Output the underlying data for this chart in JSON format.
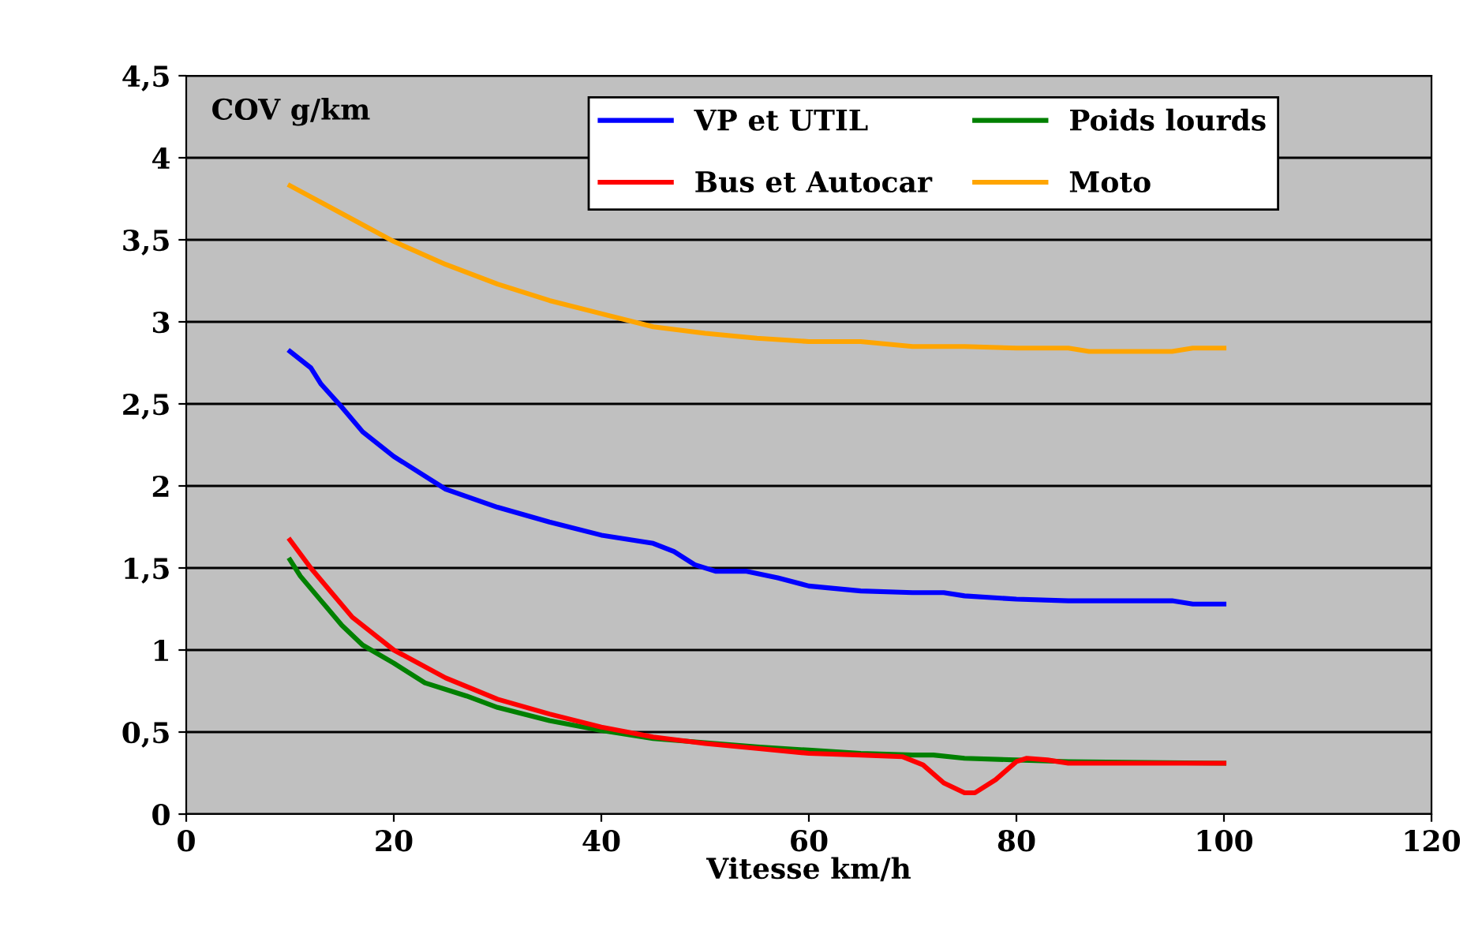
{
  "chart_data": {
    "type": "line",
    "ylabel": "COV g/km",
    "xlabel": "Vitesse km/h",
    "xlim": [
      0,
      120
    ],
    "xticks": [
      0,
      20,
      40,
      60,
      80,
      100,
      120
    ],
    "ylim": [
      0,
      4.5
    ],
    "yticks": [
      0,
      {
        "value": 0.5,
        "label": "0,5"
      },
      1,
      {
        "value": 1.5,
        "label": "1,5"
      },
      2,
      {
        "value": 2.5,
        "label": "2,5"
      },
      3,
      {
        "value": 3.5,
        "label": "3,5"
      },
      4,
      {
        "value": 4.5,
        "label": "4,5"
      }
    ],
    "grid": "y",
    "legend": "top",
    "marker": "none",
    "line_style": "solid",
    "series": [
      {
        "name": "VP et UTIL",
        "color": "#0000ff",
        "x": [
          10,
          12,
          13,
          15,
          17,
          20,
          25,
          30,
          35,
          40,
          45,
          47,
          49,
          51,
          54,
          57,
          60,
          65,
          70,
          73,
          75,
          80,
          85,
          90,
          95,
          97,
          100
        ],
        "values": [
          2.82,
          2.72,
          2.62,
          2.48,
          2.33,
          2.18,
          1.98,
          1.87,
          1.78,
          1.7,
          1.65,
          1.6,
          1.52,
          1.48,
          1.48,
          1.44,
          1.39,
          1.36,
          1.35,
          1.35,
          1.33,
          1.31,
          1.3,
          1.3,
          1.3,
          1.28,
          1.28
        ]
      },
      {
        "name": "Poids lourds",
        "color": "#008000",
        "x": [
          10,
          11,
          13,
          15,
          17,
          20,
          23,
          27,
          30,
          35,
          40,
          45,
          55,
          60,
          65,
          70,
          72,
          75,
          80,
          85,
          100
        ],
        "values": [
          1.55,
          1.45,
          1.3,
          1.15,
          1.03,
          0.92,
          0.8,
          0.72,
          0.65,
          0.57,
          0.51,
          0.46,
          0.41,
          0.39,
          0.37,
          0.36,
          0.36,
          0.34,
          0.33,
          0.32,
          0.31
        ]
      },
      {
        "name": "Bus et Autocar",
        "color": "#ff0000",
        "x": [
          10,
          12,
          14,
          16,
          18,
          20,
          25,
          30,
          35,
          40,
          45,
          50,
          55,
          60,
          65,
          69,
          71,
          73,
          75,
          76,
          78,
          80,
          81,
          83,
          85,
          90,
          100
        ],
        "values": [
          1.67,
          1.5,
          1.35,
          1.2,
          1.1,
          1.0,
          0.83,
          0.7,
          0.61,
          0.53,
          0.47,
          0.43,
          0.4,
          0.37,
          0.36,
          0.35,
          0.3,
          0.19,
          0.13,
          0.13,
          0.21,
          0.32,
          0.34,
          0.33,
          0.31,
          0.31,
          0.31
        ]
      },
      {
        "name": "Moto",
        "color": "#ffa500",
        "x": [
          10,
          15,
          20,
          25,
          30,
          35,
          40,
          45,
          50,
          55,
          60,
          65,
          70,
          75,
          80,
          85,
          87,
          90,
          95,
          97,
          100
        ],
        "values": [
          3.83,
          3.66,
          3.49,
          3.35,
          3.23,
          3.13,
          3.05,
          2.97,
          2.93,
          2.9,
          2.88,
          2.88,
          2.85,
          2.85,
          2.84,
          2.84,
          2.82,
          2.82,
          2.82,
          2.84,
          2.84
        ]
      }
    ]
  }
}
